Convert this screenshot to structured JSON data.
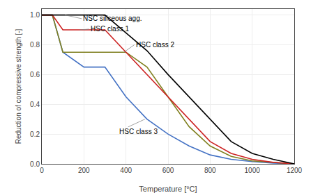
{
  "chart_data": {
    "type": "line",
    "xlabel": "Temperature [°C]",
    "ylabel": "Reduction of compressive strength [-]",
    "xlim": [
      0,
      1200
    ],
    "ylim": [
      0.0,
      1.04
    ],
    "xticks": [
      0,
      200,
      400,
      600,
      800,
      1000,
      1200
    ],
    "yticks": [
      {
        "value": 0.0,
        "label": "0.0"
      },
      {
        "value": 0.2,
        "label": "0.2"
      },
      {
        "value": 0.4,
        "label": "0.4"
      },
      {
        "value": 0.6,
        "label": "0.6"
      },
      {
        "value": 0.8,
        "label": "0.8"
      },
      {
        "value": 1.0,
        "label": "1.0"
      }
    ],
    "grid": true,
    "series": [
      {
        "color": "#000000",
        "x": [
          0,
          100,
          200,
          300,
          400,
          500,
          600,
          700,
          800,
          900,
          1000,
          1100,
          1200
        ],
        "values": [
          1.0,
          1.0,
          1.0,
          1.0,
          0.88,
          0.76,
          0.6,
          0.45,
          0.3,
          0.15,
          0.07,
          0.03,
          0.0
        ]
      },
      {
        "color": "#cc2222",
        "x": [
          0,
          50,
          100,
          200,
          300,
          400,
          500,
          600,
          700,
          800,
          900,
          1000,
          1100,
          1200
        ],
        "values": [
          1.0,
          1.0,
          0.9,
          0.9,
          0.9,
          0.75,
          0.6,
          0.45,
          0.3,
          0.15,
          0.07,
          0.03,
          0.01,
          0.0
        ]
      },
      {
        "color": "#808020",
        "x": [
          0,
          50,
          100,
          200,
          300,
          400,
          500,
          600,
          700,
          800,
          900,
          1000,
          1100,
          1200
        ],
        "values": [
          1.0,
          1.0,
          0.75,
          0.75,
          0.75,
          0.75,
          0.65,
          0.45,
          0.25,
          0.12,
          0.05,
          0.02,
          0.01,
          0.0
        ]
      },
      {
        "color": "#4472c4",
        "x": [
          0,
          50,
          100,
          200,
          300,
          400,
          500,
          600,
          700,
          800,
          900,
          1000,
          1100,
          1200
        ],
        "values": [
          1.0,
          1.0,
          0.75,
          0.65,
          0.65,
          0.45,
          0.3,
          0.2,
          0.12,
          0.06,
          0.03,
          0.015,
          0.005,
          0.0
        ]
      }
    ],
    "annotations": [
      {
        "text": "NSC siliceous agg.",
        "xy": [
          110,
          1.0
        ],
        "xytext": [
          190,
          0.975
        ]
      },
      {
        "text": "HSC class 1",
        "xy": [
          180,
          0.9
        ],
        "xytext": [
          225,
          0.905
        ]
      },
      {
        "text": "HSC class 2",
        "xy": [
          390,
          0.75
        ],
        "xytext": [
          440,
          0.8
        ]
      },
      {
        "text": "HSC class 3",
        "xy": [
          490,
          0.3
        ],
        "xytext": [
          360,
          0.215
        ]
      }
    ]
  }
}
